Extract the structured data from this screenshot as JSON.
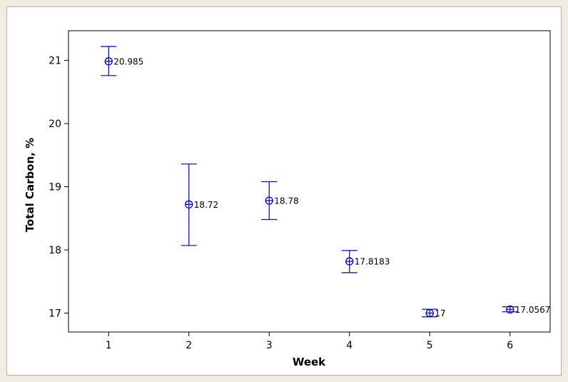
{
  "chart_data": {
    "type": "scatter",
    "title": "",
    "xlabel": "Week",
    "ylabel": "Total Carbon, %",
    "x": [
      1,
      2,
      3,
      4,
      5,
      6
    ],
    "x_ticks": [
      "1",
      "2",
      "3",
      "4",
      "5",
      "6"
    ],
    "y_ticks": [
      "17",
      "18",
      "19",
      "20",
      "21"
    ],
    "xlim": [
      0.5,
      6.5
    ],
    "ylim": [
      16.7,
      21.47
    ],
    "series": [
      {
        "values": [
          20.985,
          18.72,
          18.78,
          17.8183,
          17,
          17.0567
        ],
        "labels": [
          "20.985",
          "18.72",
          "18.78",
          "17.8183",
          "17",
          "17.0567"
        ],
        "error_upper": [
          21.22,
          19.36,
          19.08,
          17.99,
          17.06,
          17.1
        ],
        "error_lower": [
          20.76,
          18.07,
          18.48,
          17.64,
          16.94,
          17.02
        ],
        "color": "#0000cc"
      }
    ],
    "grid": false,
    "legend": "none"
  }
}
